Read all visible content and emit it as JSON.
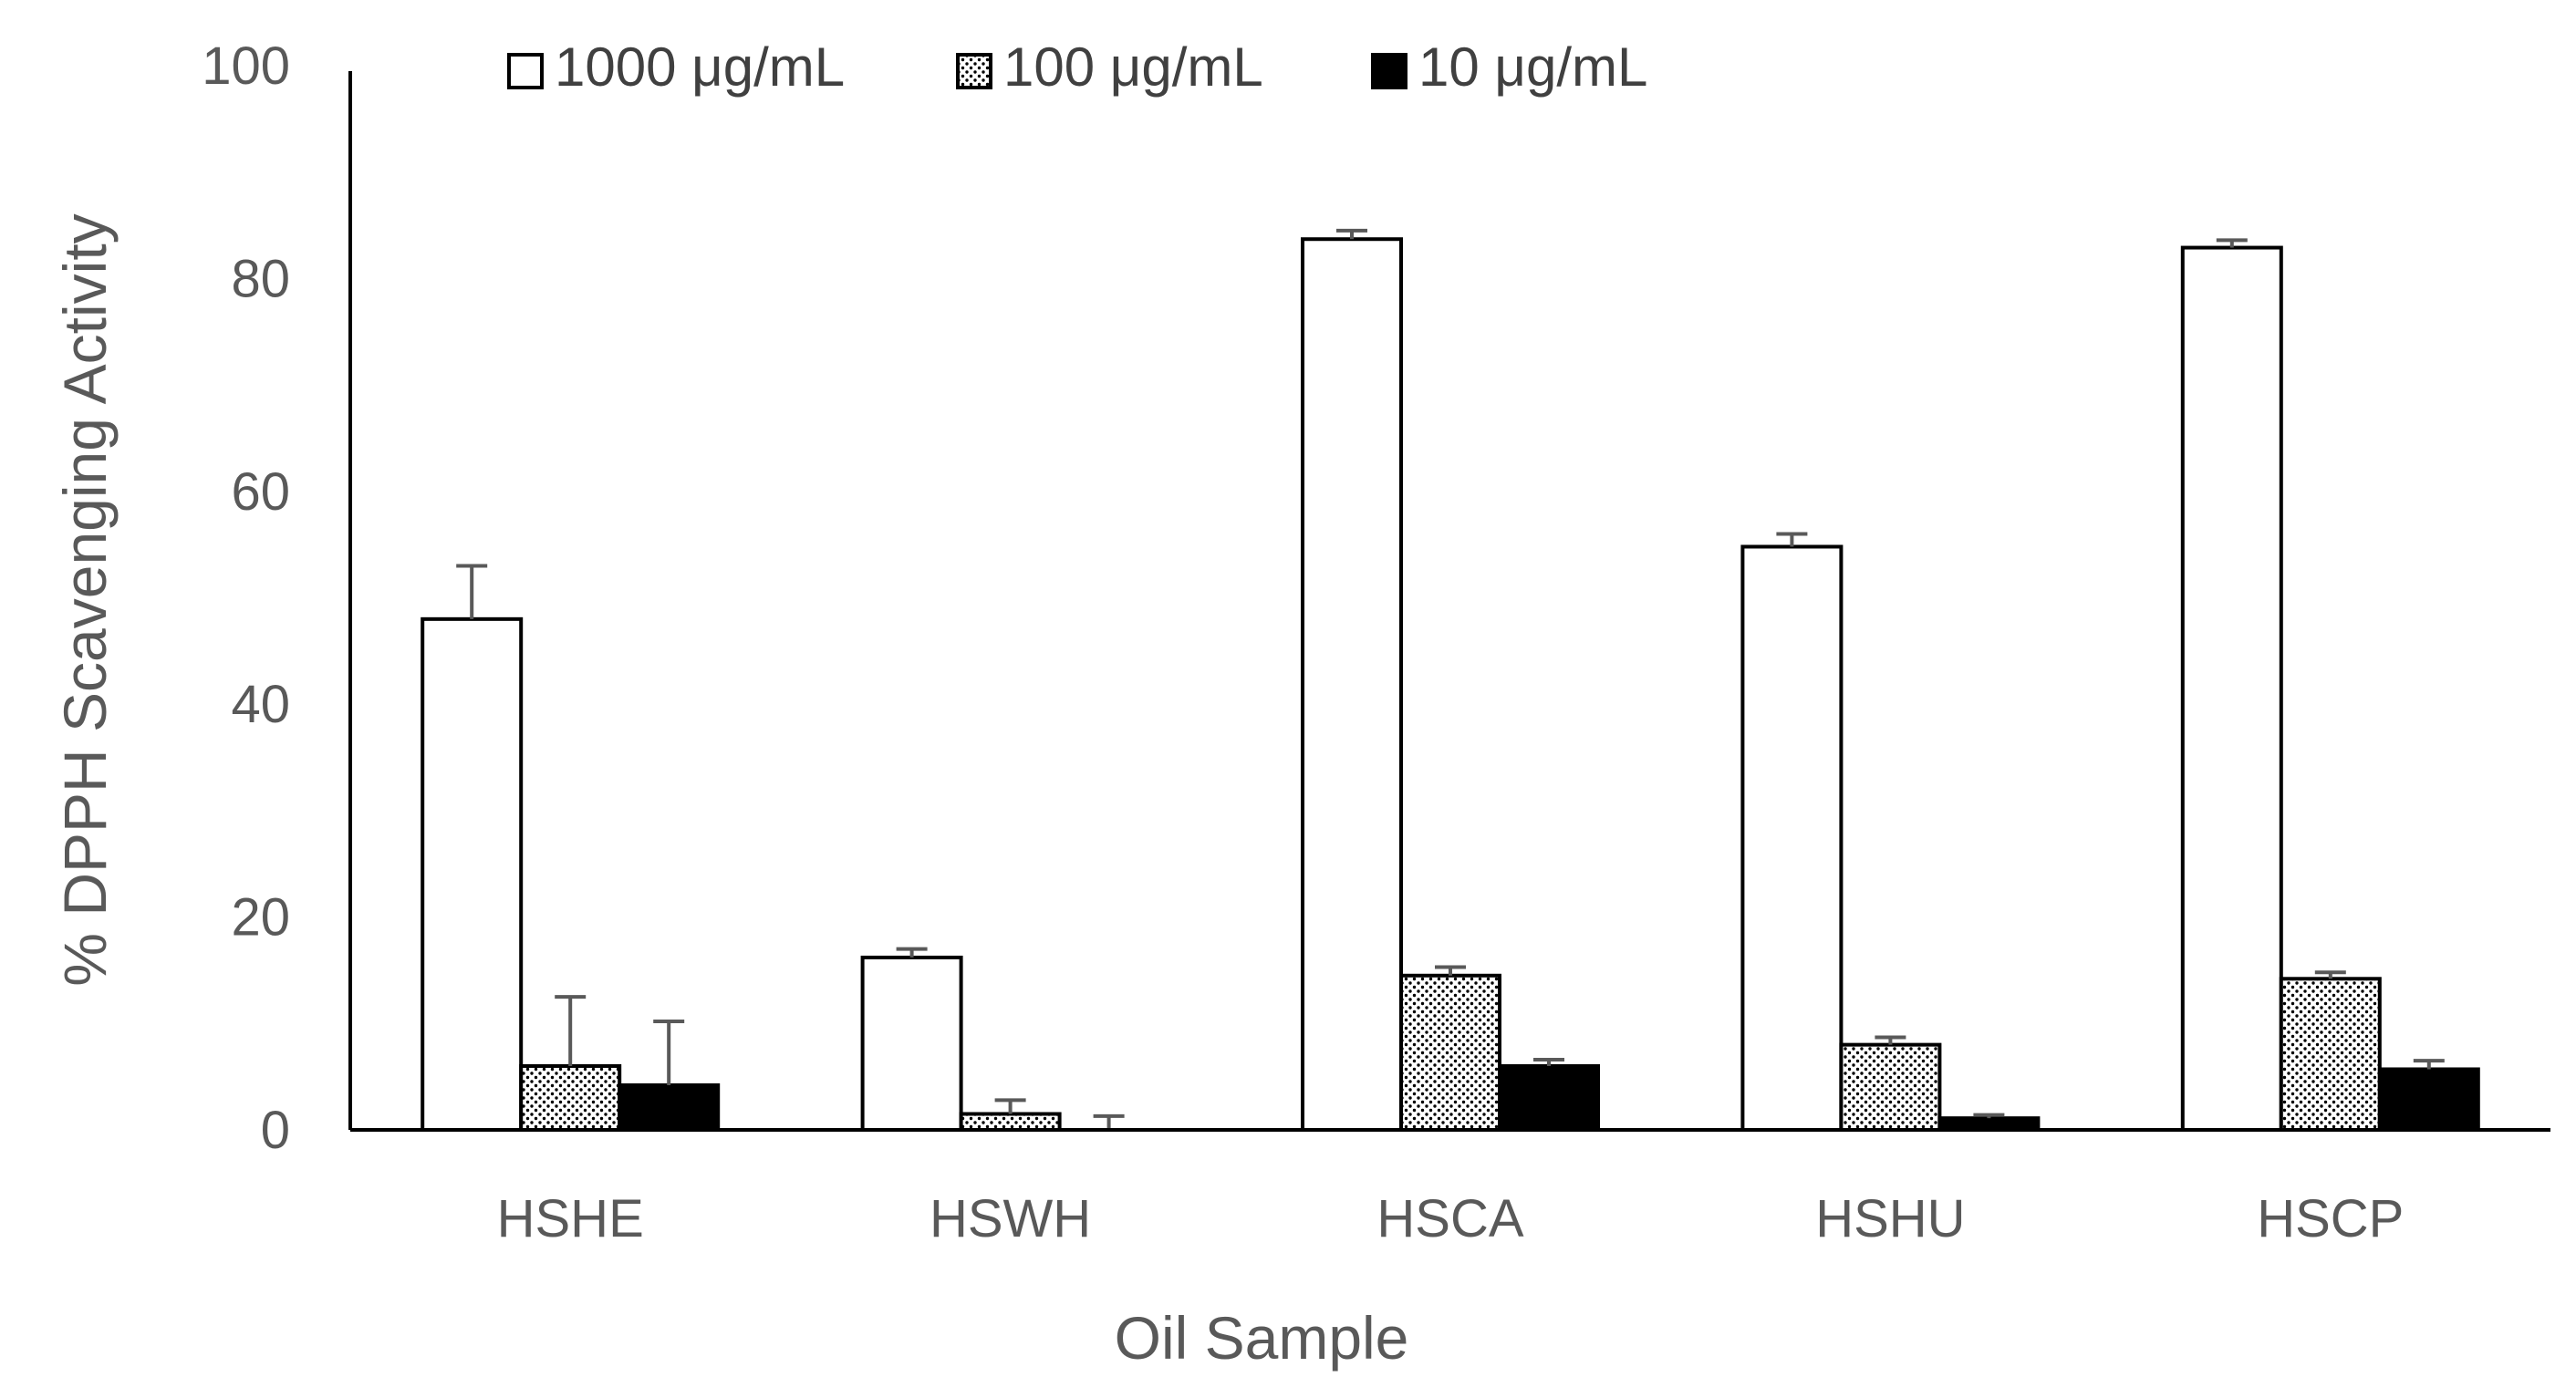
{
  "chart_data": {
    "type": "bar",
    "title": "",
    "xlabel": "Oil Sample",
    "ylabel": "% DPPH Scavenging Activity",
    "ylim": [
      0,
      100
    ],
    "yticks": [
      "0",
      "20",
      "40",
      "60",
      "80",
      "100"
    ],
    "categories": [
      "HSHE",
      "HSWH",
      "HSCA",
      "HSHU",
      "HSCP"
    ],
    "legend_position": "top",
    "series": [
      {
        "name": "1000 μg/mL",
        "pattern": "white",
        "values": [
          48,
          16.2,
          83.7,
          54.8,
          82.9
        ],
        "errors": [
          5,
          0.8,
          0.8,
          1.2,
          0.7
        ]
      },
      {
        "name": "100 μg/mL",
        "pattern": "dotted",
        "values": [
          6,
          1.5,
          14.5,
          8,
          14.2
        ],
        "errors": [
          6.5,
          1.3,
          0.8,
          0.7,
          0.6
        ]
      },
      {
        "name": "10 μg/mL",
        "pattern": "black",
        "values": [
          4.2,
          0,
          6,
          1.1,
          5.7
        ],
        "errors": [
          6,
          1.3,
          0.6,
          0.3,
          0.8
        ]
      }
    ]
  },
  "colors": {
    "axis": "#000000",
    "text": "#595959",
    "bar_outline": "#000000",
    "error_bar": "#595959"
  }
}
